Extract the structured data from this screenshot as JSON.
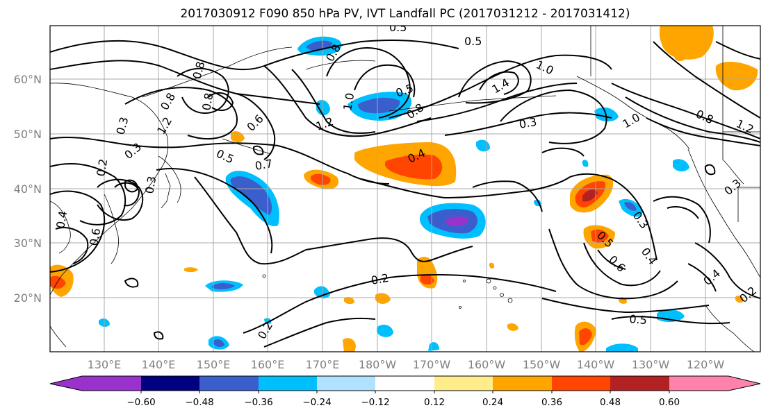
{
  "title": "2017030912 F090 850 hPa PV, IVT Landfall PC (2017031212 - 2017031412)",
  "map": {
    "lat_labels": [
      "60°N",
      "50°N",
      "40°N",
      "30°N",
      "20°N"
    ],
    "lon_labels": [
      "130°E",
      "140°E",
      "150°E",
      "160°E",
      "170°E",
      "180°W",
      "170°W",
      "160°W",
      "150°W",
      "140°W",
      "130°W",
      "120°W"
    ],
    "contour_labels": [
      "0.5",
      "0.5",
      "0.8",
      "0.8",
      "1.0",
      "1.4",
      "0.8",
      "0.5",
      "1.0",
      "0.8",
      "1.2",
      "0.8",
      "0.6",
      "0.3",
      "1.2",
      "0.3",
      "1.0",
      "0.8",
      "1.2",
      "0.5",
      "0.7",
      "0.4",
      "0.2",
      "0.3",
      "0.3",
      "0.4",
      "0.3",
      "0.5",
      "0.6",
      "0.4",
      "0.6",
      "0.4",
      "0.3",
      "0.2",
      "0.2",
      "0.5",
      "0.2"
    ]
  },
  "colorbar": {
    "tick_labels": [
      "−0.60",
      "−0.48",
      "−0.36",
      "−0.24",
      "−0.12",
      "0.12",
      "0.24",
      "0.36",
      "0.48",
      "0.60"
    ],
    "colors": [
      "#9932CC",
      "#000080",
      "#3A5FCD",
      "#00BFFF",
      "#B0E2FF",
      "#FFFFFF",
      "#FFEC8B",
      "#FFA500",
      "#FF4500",
      "#B22222",
      "#FF82AB"
    ]
  }
}
